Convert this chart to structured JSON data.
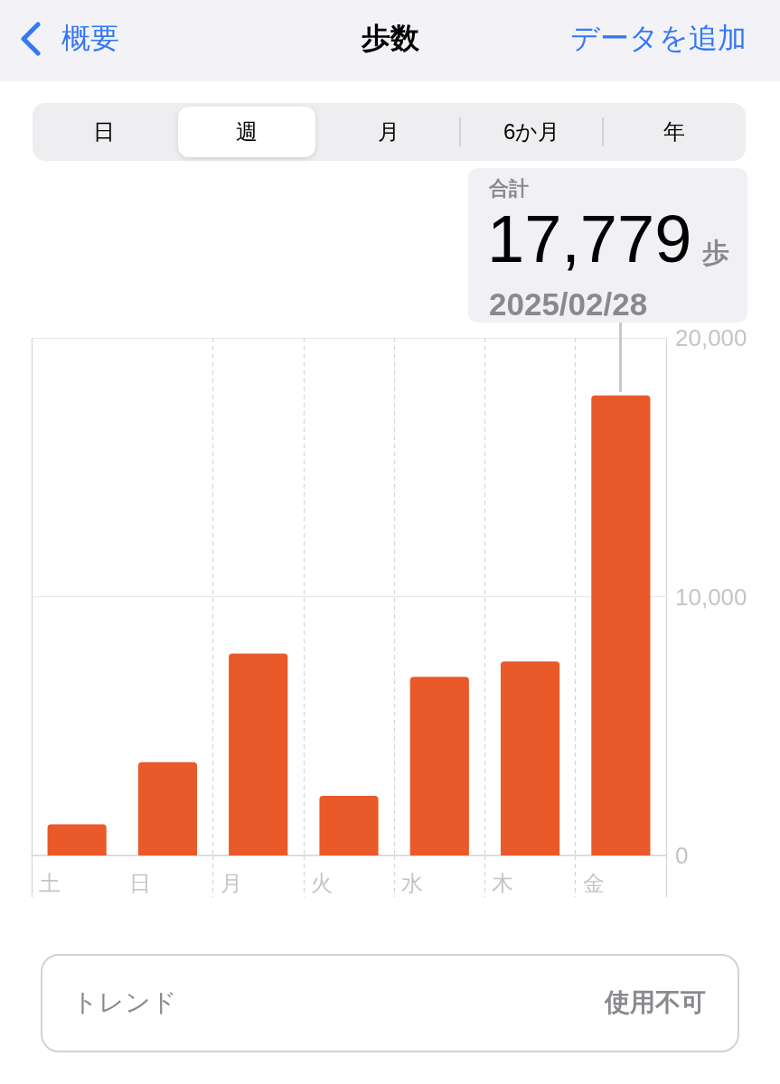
{
  "chart_data": {
    "type": "bar",
    "title": "歩数",
    "categories": [
      "土",
      "日",
      "月",
      "火",
      "水",
      "木",
      "金"
    ],
    "values": [
      1200,
      3600,
      7800,
      2300,
      6900,
      7500,
      17779
    ],
    "value_labels": [
      null,
      null,
      null,
      null,
      null,
      null,
      "17,779"
    ],
    "color": "#e9592a",
    "ylim": [
      0,
      20000
    ],
    "yticks": [
      0,
      {
        "value": 10000,
        "label": "10,000"
      },
      {
        "value": 20000,
        "label": "20,000"
      }
    ],
    "grid": true,
    "annotations": [
      "概要",
      "データを追加",
      "日",
      "週",
      "月",
      "6か月",
      "年",
      "合計",
      "歩",
      "2025/02/28",
      "トレンド",
      "使用不可"
    ]
  }
}
